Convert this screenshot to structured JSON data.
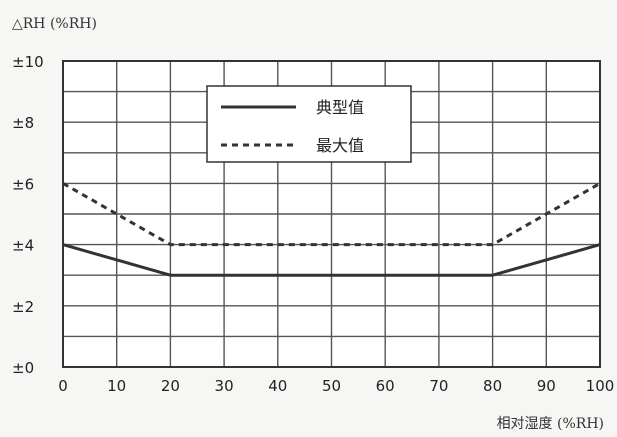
{
  "chart_data": {
    "type": "line",
    "ylabel": "△RH (%RH)",
    "xlabel": "相对湿度 (%RH)",
    "xlim": [
      0,
      100
    ],
    "ylim": [
      0,
      10
    ],
    "x_ticks": [
      0,
      10,
      20,
      30,
      40,
      50,
      60,
      70,
      80,
      90,
      100
    ],
    "y_ticks": [
      0,
      2,
      4,
      6,
      8,
      10
    ],
    "y_tick_labels": [
      "±0",
      "±2",
      "±4",
      "±6",
      "±8",
      "±10"
    ],
    "grid": true,
    "legend_position": "top-center",
    "series": [
      {
        "name": "典型值",
        "style": "solid",
        "color": "#333333",
        "x": [
          0,
          20,
          80,
          100
        ],
        "y": [
          4,
          3,
          3,
          4
        ]
      },
      {
        "name": "最大值",
        "style": "dashed",
        "color": "#333333",
        "x": [
          0,
          20,
          80,
          100
        ],
        "y": [
          6,
          4,
          4,
          6
        ]
      }
    ]
  }
}
